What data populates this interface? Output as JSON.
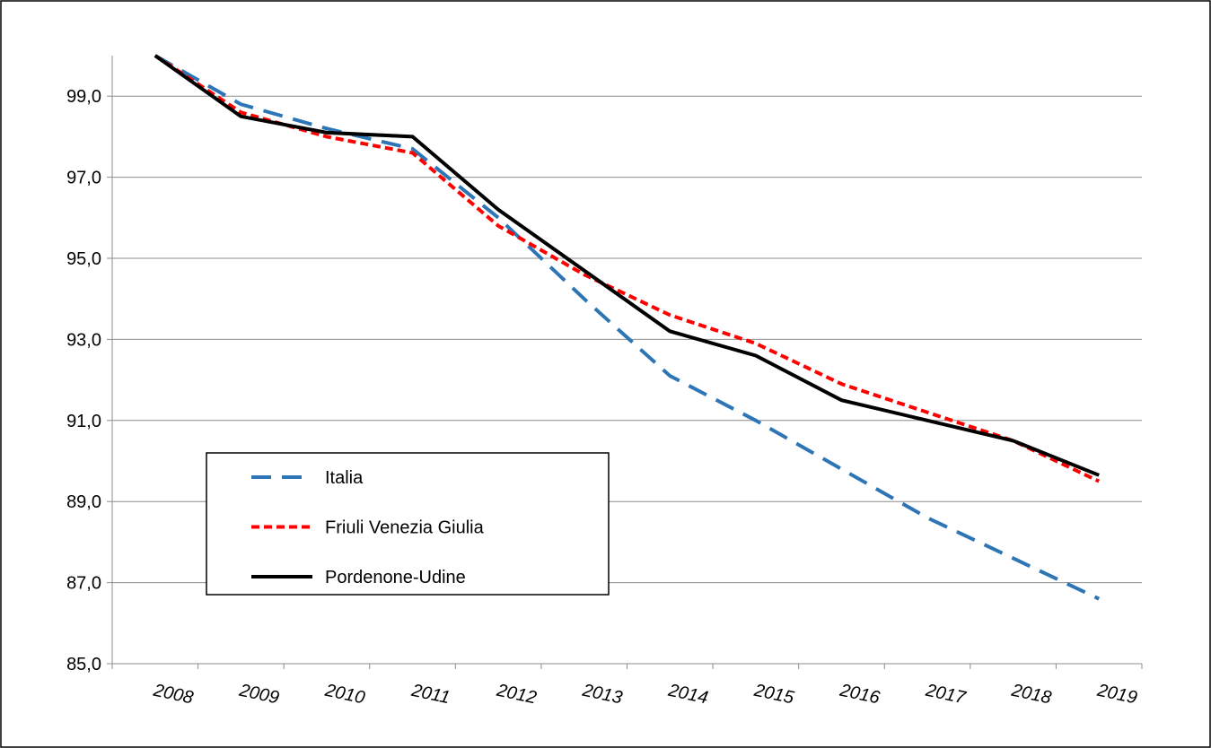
{
  "chart_data": {
    "type": "line",
    "categories": [
      "2008",
      "2009",
      "2010",
      "2011",
      "2012",
      "2013",
      "2014",
      "2015",
      "2016",
      "2017",
      "2018",
      "2019"
    ],
    "series": [
      {
        "name": "Italia",
        "color": "#2e75b6",
        "dash": "22 12",
        "values": [
          100,
          98.8,
          98.2,
          97.7,
          96.0,
          94.0,
          92.1,
          91.0,
          89.8,
          88.6,
          87.6,
          86.6
        ]
      },
      {
        "name": "Friuli Venezia Giulia",
        "color": "#ff0000",
        "dash": "9 5",
        "values": [
          100,
          98.6,
          98.0,
          97.6,
          95.8,
          94.6,
          93.6,
          92.9,
          91.9,
          91.2,
          90.5,
          89.5
        ]
      },
      {
        "name": "Pordenone-Udine",
        "color": "#000000",
        "dash": "none",
        "values": [
          100,
          98.5,
          98.1,
          98.0,
          96.2,
          94.7,
          93.2,
          92.6,
          91.5,
          91.0,
          90.5,
          89.65
        ]
      }
    ],
    "ylim": [
      85,
      100
    ],
    "yticks": [
      {
        "value": 85,
        "label": "85,0"
      },
      {
        "value": 87,
        "label": "87,0"
      },
      {
        "value": 89,
        "label": "89,0"
      },
      {
        "value": 91,
        "label": "91,0"
      },
      {
        "value": 93,
        "label": "93,0"
      },
      {
        "value": 95,
        "label": "95,0"
      },
      {
        "value": 97,
        "label": "97,0"
      },
      {
        "value": 99,
        "label": "99,0"
      }
    ],
    "grid": true
  }
}
